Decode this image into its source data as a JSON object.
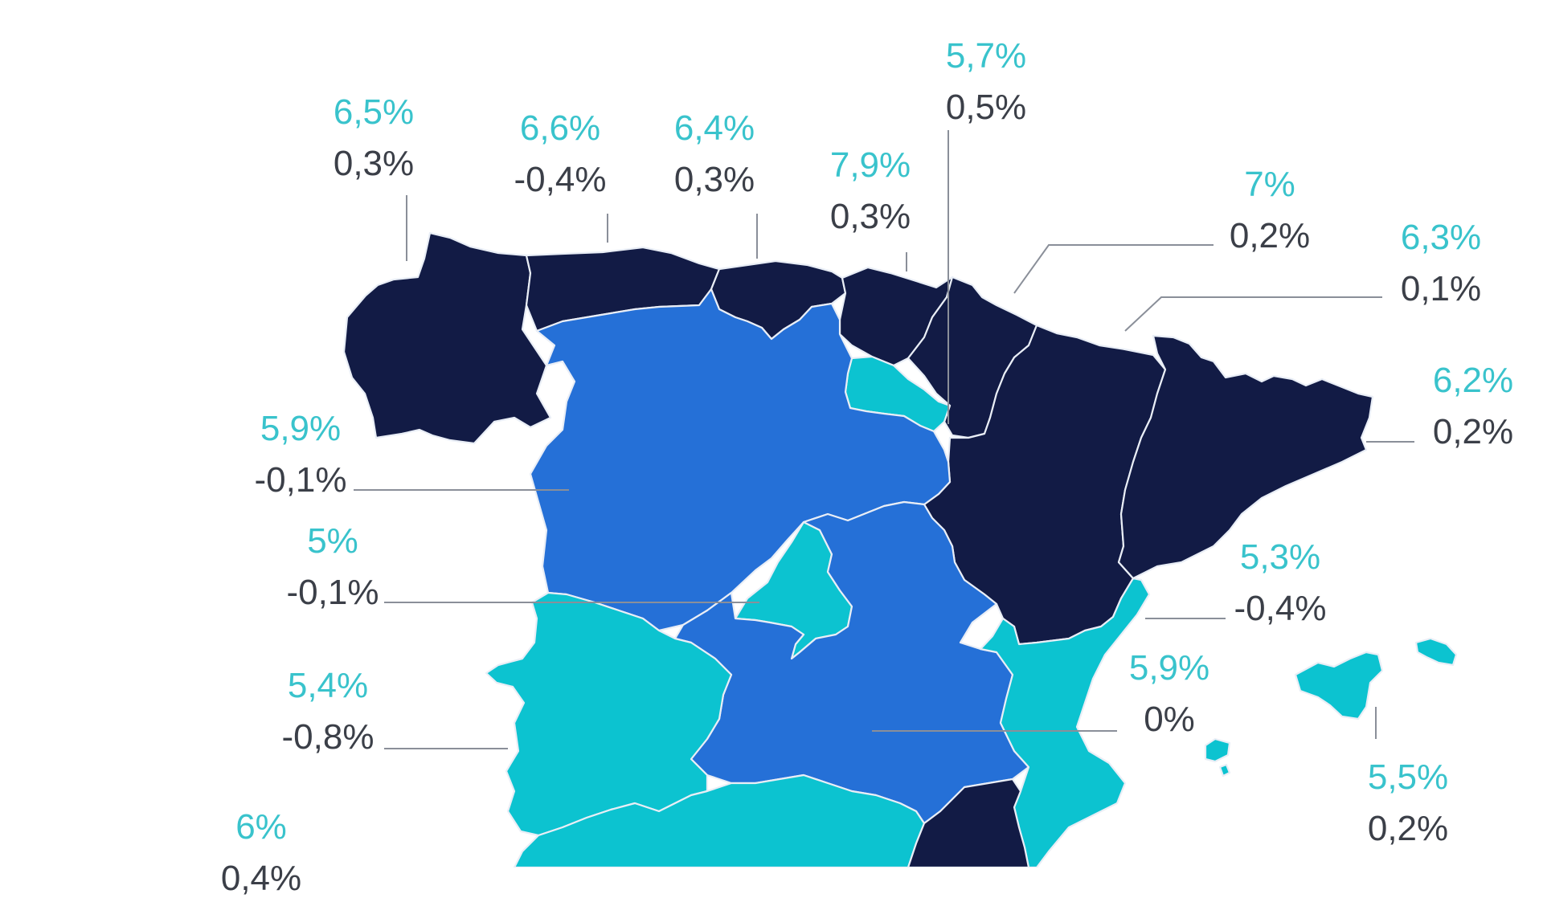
{
  "colors": {
    "dark_navy": "#121b45",
    "mid_blue": "#2570d7",
    "turquoise": "#0cc3d0",
    "label_primary": "#39c3cc",
    "label_secondary": "#3b3f48",
    "leader_line": "#8a8f99"
  },
  "regions": [
    {
      "id": "galicia",
      "fill": "dark_navy",
      "value1": "6,5%",
      "value2": "0,3%"
    },
    {
      "id": "asturias",
      "fill": "dark_navy",
      "value1": "6,6%",
      "value2": "-0,4%"
    },
    {
      "id": "cantabria",
      "fill": "dark_navy",
      "value1": "6,4%",
      "value2": "0,3%"
    },
    {
      "id": "pais-vasco",
      "fill": "dark_navy",
      "value1": "7,9%",
      "value2": "0,3%"
    },
    {
      "id": "la-rioja",
      "fill": "turquoise",
      "value1": "5,7%",
      "value2": "0,5%"
    },
    {
      "id": "navarra",
      "fill": "dark_navy",
      "value1": "7%",
      "value2": "0,2%"
    },
    {
      "id": "aragon",
      "fill": "dark_navy",
      "value1": "6,3%",
      "value2": "0,1%"
    },
    {
      "id": "cataluna",
      "fill": "dark_navy",
      "value1": "6,2%",
      "value2": "0,2%"
    },
    {
      "id": "castilla-y-leon",
      "fill": "mid_blue",
      "value1": "5,9%",
      "value2": "-0,1%"
    },
    {
      "id": "madrid",
      "fill": "turquoise",
      "value1": "5%",
      "value2": "-0,1%"
    },
    {
      "id": "comunidad-valenciana",
      "fill": "turquoise",
      "value1": "5,3%",
      "value2": "-0,4%"
    },
    {
      "id": "castilla-la-mancha",
      "fill": "mid_blue",
      "value1": "5,9%",
      "value2": "0%"
    },
    {
      "id": "extremadura",
      "fill": "turquoise",
      "value1": "5,4%",
      "value2": "-0,8%"
    },
    {
      "id": "baleares",
      "fill": "turquoise",
      "value1": "5,5%",
      "value2": "0,2%"
    },
    {
      "id": "andalucia",
      "fill": "turquoise",
      "value1": "6%",
      "value2": "0,4%"
    },
    {
      "id": "murcia",
      "fill": "dark_navy",
      "value1": "",
      "value2": ""
    }
  ]
}
